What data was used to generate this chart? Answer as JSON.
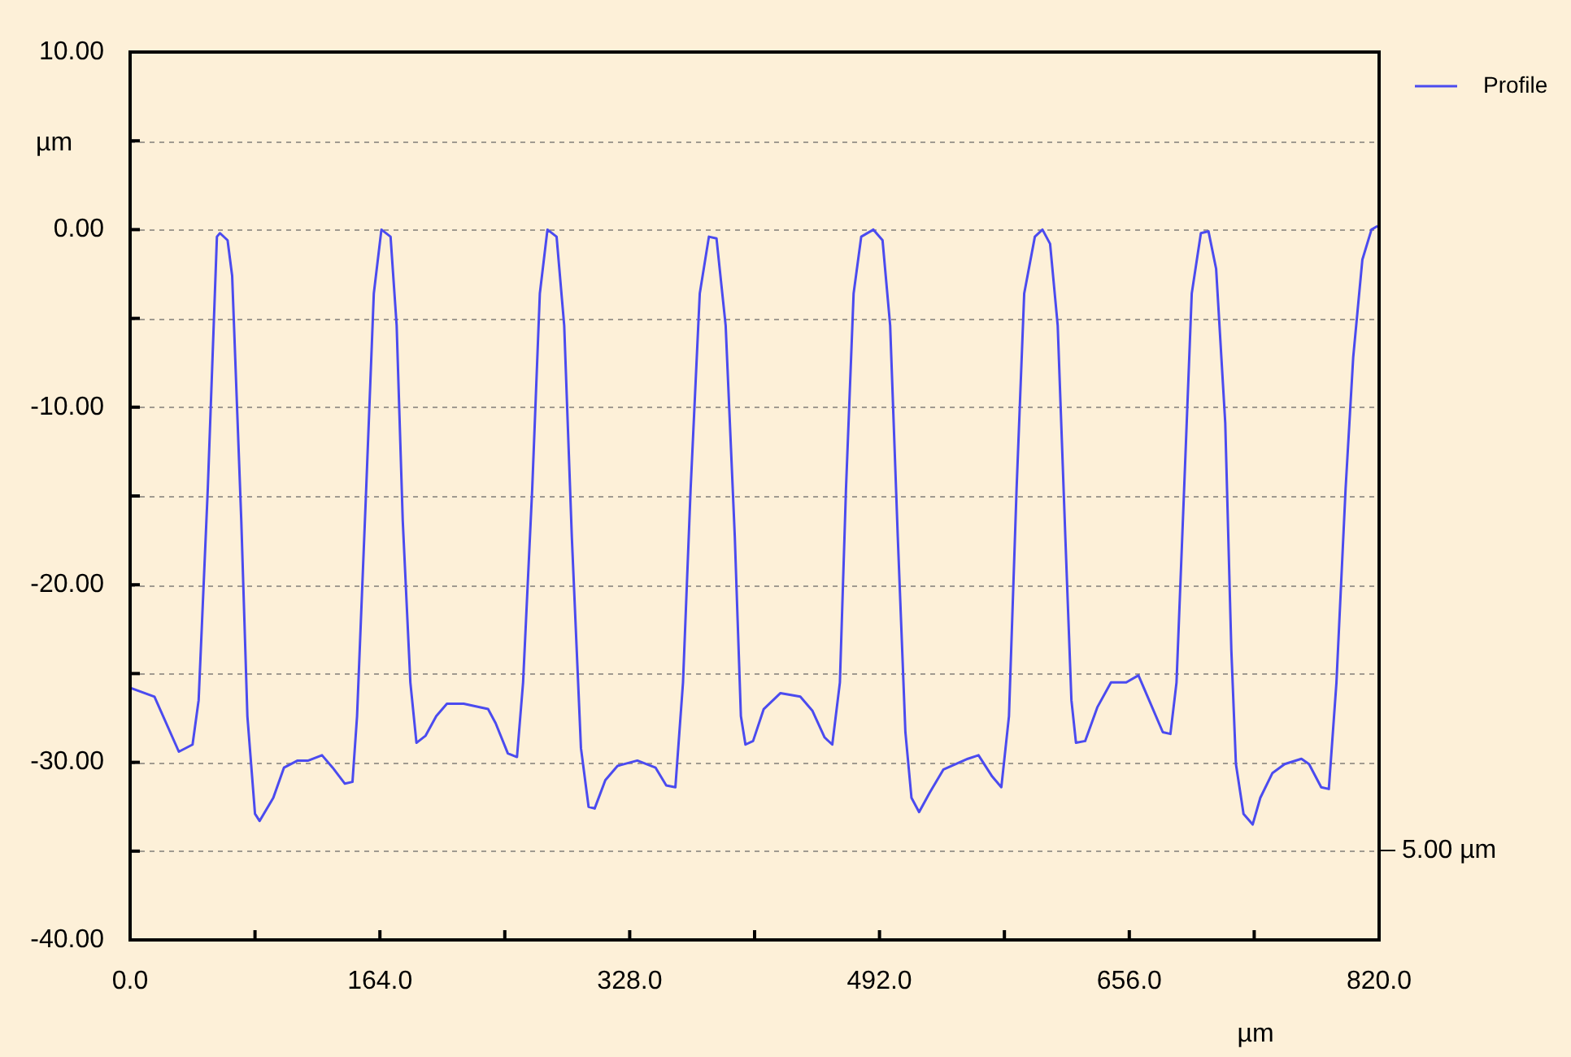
{
  "chart_data": {
    "type": "line",
    "xlabel": "µm",
    "ylabel": "µm",
    "legend": "top right",
    "grid": "y",
    "marker": "none",
    "line_style": "solid",
    "annotations": [
      "5.00 µm"
    ],
    "xlim": [
      0,
      820
    ],
    "xticks": [
      {
        "value": 0,
        "label": "0.0"
      },
      {
        "value": 82,
        "label": null
      },
      {
        "value": 164,
        "label": "164.0"
      },
      {
        "value": 246,
        "label": null
      },
      {
        "value": 328,
        "label": "328.0"
      },
      {
        "value": 410,
        "label": null
      },
      {
        "value": 492,
        "label": "492.0"
      },
      {
        "value": 574,
        "label": null
      },
      {
        "value": 656,
        "label": "656.0"
      },
      {
        "value": 738,
        "label": null
      },
      {
        "value": 820,
        "label": "820.0"
      }
    ],
    "ylim": [
      -40,
      10
    ],
    "yticks": [
      {
        "value": -40,
        "label": "-40.00"
      },
      {
        "value": -35,
        "label": null
      },
      {
        "value": -30,
        "label": "-30.00"
      },
      {
        "value": -25,
        "label": null
      },
      {
        "value": -20,
        "label": "-20.00"
      },
      {
        "value": -15,
        "label": null
      },
      {
        "value": -10,
        "label": "-10.00"
      },
      {
        "value": -5,
        "label": null
      },
      {
        "value": 0,
        "label": "0.00"
      },
      {
        "value": 5,
        "label": null
      },
      {
        "value": 10,
        "label": "10.00"
      }
    ],
    "series": [
      {
        "name": "Profile",
        "color": "#4b4bef",
        "x": [
          0,
          16,
          32,
          41,
          45,
          51,
          57,
          59,
          64,
          67,
          73,
          77,
          82,
          85,
          94,
          101,
          110,
          117,
          126,
          133,
          141,
          146,
          149,
          155,
          160,
          165,
          171,
          175,
          179,
          184,
          188,
          194,
          201,
          208,
          219,
          235,
          240,
          248,
          254,
          258,
          264,
          269,
          274,
          280,
          285,
          290,
          296,
          301,
          305,
          312,
          320,
          333,
          345,
          352,
          358,
          363,
          368,
          374,
          380,
          385,
          391,
          397,
          401,
          404,
          409,
          416,
          427,
          440,
          448,
          456,
          461,
          466,
          470,
          475,
          480,
          488,
          494,
          499,
          504,
          509,
          513,
          518,
          525,
          534,
          550,
          557,
          566,
          572,
          577,
          582,
          587,
          594,
          599,
          604,
          609,
          614,
          618,
          621,
          627,
          635,
          644,
          654,
          662,
          669,
          678,
          683,
          687,
          692,
          697,
          703,
          708,
          713,
          719,
          723,
          726,
          731,
          737,
          742,
          750,
          758,
          769,
          774,
          782,
          787,
          792,
          798,
          803,
          809,
          815,
          819
        ],
        "values": [
          -25.8,
          -26.3,
          -29.4,
          -29.0,
          -26.5,
          -14.6,
          -0.4,
          -0.2,
          -0.6,
          -2.6,
          -16.4,
          -27.4,
          -32.9,
          -33.3,
          -32.0,
          -30.3,
          -29.9,
          -29.9,
          -29.6,
          -30.3,
          -31.2,
          -31.1,
          -27.4,
          -14.6,
          -3.6,
          0,
          -0.4,
          -5.4,
          -16.4,
          -25.5,
          -28.9,
          -28.5,
          -27.4,
          -26.7,
          -26.7,
          -27.0,
          -27.8,
          -29.5,
          -29.7,
          -25.5,
          -14.6,
          -3.6,
          0,
          -0.4,
          -5.4,
          -17.3,
          -29.2,
          -32.5,
          -32.6,
          -31.0,
          -30.2,
          -29.9,
          -30.3,
          -31.3,
          -31.4,
          -25.5,
          -14.6,
          -3.6,
          -0.4,
          -0.5,
          -5.4,
          -17.3,
          -27.4,
          -29.0,
          -28.8,
          -27.0,
          -26.1,
          -26.3,
          -27.1,
          -28.6,
          -29.0,
          -25.5,
          -14.6,
          -3.6,
          -0.4,
          0,
          -0.6,
          -5.4,
          -17.3,
          -28.3,
          -32.0,
          -32.8,
          -31.7,
          -30.4,
          -29.8,
          -29.6,
          -30.8,
          -31.4,
          -27.4,
          -14.6,
          -3.6,
          -0.4,
          0,
          -0.8,
          -5.4,
          -17.3,
          -26.5,
          -28.9,
          -28.8,
          -26.9,
          -25.5,
          -25.5,
          -25.1,
          -26.5,
          -28.3,
          -28.4,
          -25.5,
          -14.6,
          -3.6,
          -0.2,
          -0.1,
          -2.2,
          -10.9,
          -23.7,
          -30.1,
          -32.9,
          -33.5,
          -32.0,
          -30.6,
          -30.1,
          -29.8,
          -30.1,
          -31.4,
          -31.5,
          -25.5,
          -14.6,
          -7.2,
          -1.7,
          0,
          0.2
        ]
      }
    ]
  }
}
